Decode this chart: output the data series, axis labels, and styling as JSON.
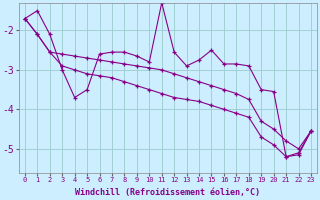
{
  "x": [
    0,
    1,
    2,
    3,
    4,
    5,
    6,
    7,
    8,
    9,
    10,
    11,
    12,
    13,
    14,
    15,
    16,
    17,
    18,
    19,
    20,
    21,
    22,
    23
  ],
  "line_main": [
    -1.7,
    -1.5,
    -2.1,
    -3.0,
    -3.7,
    -3.5,
    -2.6,
    -2.55,
    -2.55,
    -2.65,
    -2.8,
    -1.3,
    -2.55,
    -2.9,
    -2.75,
    -2.5,
    -2.85,
    -2.85,
    -2.9,
    -3.5,
    -3.55,
    -5.2,
    -5.1,
    -4.55
  ],
  "line_upper": [
    -1.7,
    -2.1,
    -2.55,
    -2.6,
    -2.65,
    -2.7,
    -2.75,
    -2.8,
    -2.85,
    -2.9,
    -2.95,
    -3.0,
    -3.1,
    -3.2,
    -3.3,
    -3.4,
    -3.5,
    -3.6,
    -3.75,
    -4.3,
    -4.5,
    -4.8,
    -5.0,
    -4.55
  ],
  "line_lower": [
    -1.7,
    -2.1,
    -2.55,
    -2.9,
    -3.0,
    -3.1,
    -3.15,
    -3.2,
    -3.3,
    -3.4,
    -3.5,
    -3.6,
    -3.7,
    -3.75,
    -3.8,
    -3.9,
    -4.0,
    -4.1,
    -4.2,
    -4.7,
    -4.9,
    -5.2,
    -5.15,
    -4.55
  ],
  "color": "#880088",
  "background": "#cceeff",
  "grid_color": "#99cccc",
  "xlim_min": -0.5,
  "xlim_max": 23.5,
  "ylim_min": -5.6,
  "ylim_max": -1.3,
  "yticks": [
    -5,
    -4,
    -3,
    -2
  ],
  "xlabel": "Windchill (Refroidissement éolien,°C)",
  "marker": "+"
}
